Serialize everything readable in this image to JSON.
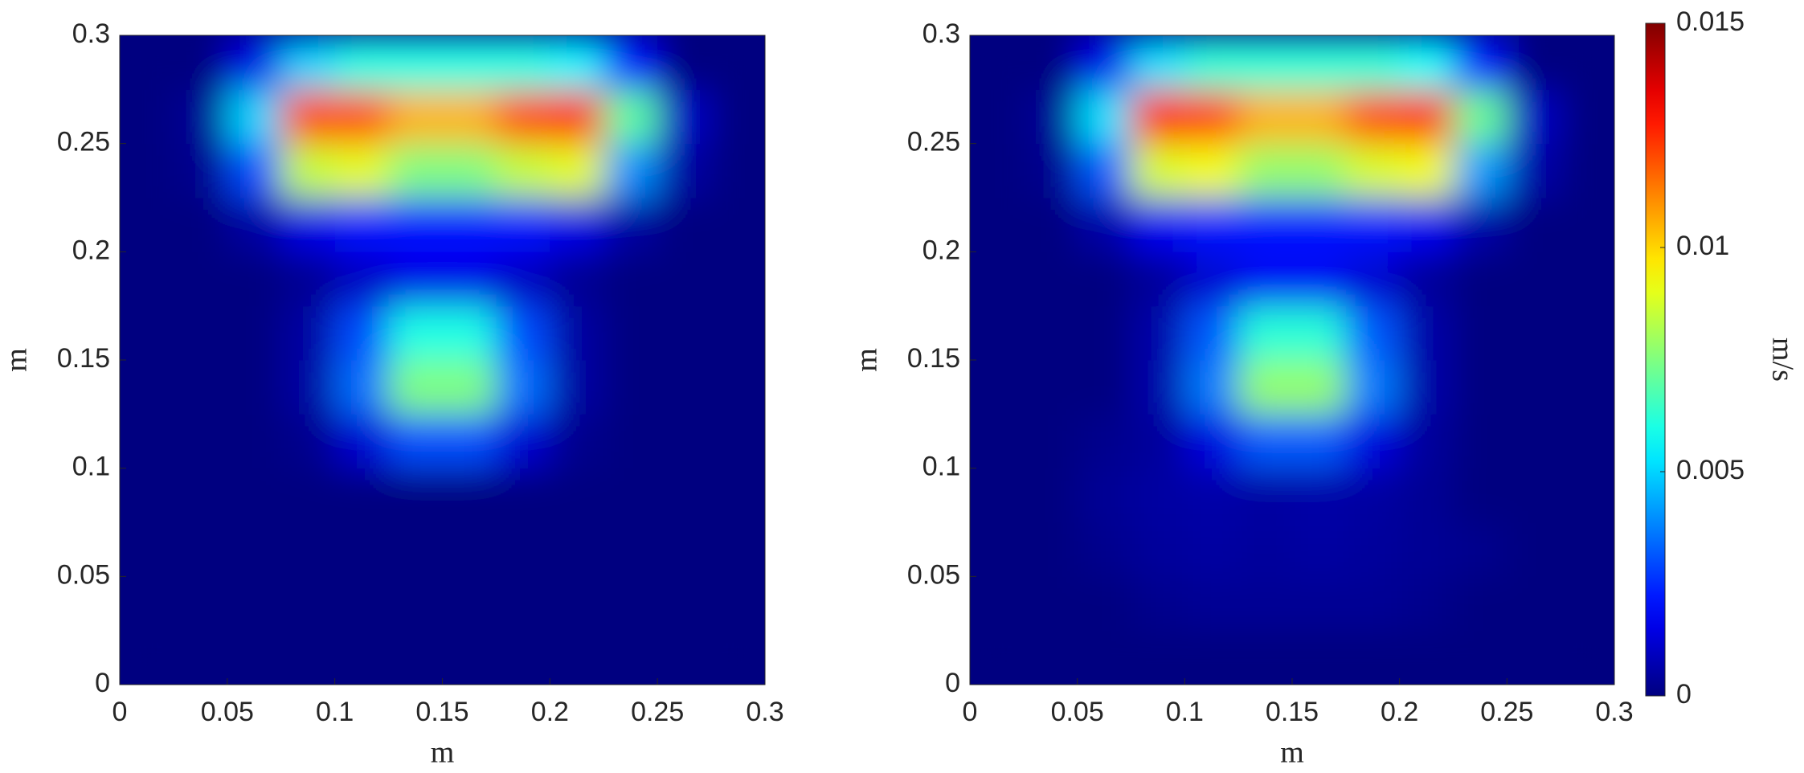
{
  "chart_data": [
    {
      "type": "heatmap",
      "colormap": "jet",
      "xlabel": "m",
      "ylabel": "m",
      "xlim": [
        0,
        0.3
      ],
      "ylim": [
        0,
        0.3
      ],
      "xticks": [
        0,
        0.05,
        0.1,
        0.15,
        0.2,
        0.25,
        0.3
      ],
      "yticks": [
        0,
        0.05,
        0.1,
        0.15,
        0.2,
        0.25,
        0.3
      ],
      "x": [
        0.0125,
        0.0375,
        0.0625,
        0.0875,
        0.1125,
        0.1375,
        0.1625,
        0.1875,
        0.2125,
        0.2375,
        0.2625,
        0.2875
      ],
      "y": [
        0.0125,
        0.0375,
        0.0625,
        0.0875,
        0.1125,
        0.1375,
        0.1625,
        0.1875,
        0.2125,
        0.2375,
        0.2625,
        0.2875
      ],
      "z": [
        [
          0,
          0,
          0,
          0,
          0,
          0,
          0,
          0,
          0,
          0,
          0,
          0
        ],
        [
          0,
          0,
          0,
          0,
          0,
          0,
          0,
          0,
          0,
          0,
          0,
          0
        ],
        [
          0,
          0,
          0,
          0,
          0,
          0,
          0,
          0,
          0,
          0,
          0,
          0
        ],
        [
          0,
          0,
          0,
          0,
          0,
          0,
          0,
          0,
          0,
          0,
          0,
          0
        ],
        [
          0,
          0,
          0,
          0.0002,
          0.0012,
          0.003,
          0.003,
          0.0012,
          0.0002,
          0,
          0,
          0
        ],
        [
          0,
          0,
          0,
          0.0005,
          0.0035,
          0.0075,
          0.0075,
          0.0035,
          0.0005,
          0,
          0,
          0
        ],
        [
          0,
          0,
          0,
          0.0005,
          0.003,
          0.006,
          0.006,
          0.003,
          0.0005,
          0,
          0,
          0
        ],
        [
          0,
          0,
          0,
          0.0003,
          0.001,
          0.0015,
          0.0015,
          0.001,
          0.0003,
          0,
          0,
          0
        ],
        [
          0,
          0,
          0.0005,
          0.0015,
          0.002,
          0.002,
          0.002,
          0.002,
          0.0015,
          0.0005,
          0,
          0
        ],
        [
          0,
          0.0002,
          0.003,
          0.0085,
          0.009,
          0.0075,
          0.0075,
          0.0085,
          0.009,
          0.004,
          0.0005,
          0
        ],
        [
          0,
          0.0003,
          0.005,
          0.012,
          0.012,
          0.0105,
          0.0105,
          0.012,
          0.0125,
          0.007,
          0.001,
          0
        ],
        [
          0,
          0,
          0.0015,
          0.005,
          0.006,
          0.006,
          0.006,
          0.006,
          0.0055,
          0.002,
          0,
          0
        ]
      ]
    },
    {
      "type": "heatmap",
      "colormap": "jet",
      "xlabel": "m",
      "ylabel": "m",
      "xlim": [
        0,
        0.3
      ],
      "ylim": [
        0,
        0.3
      ],
      "xticks": [
        0,
        0.05,
        0.1,
        0.15,
        0.2,
        0.25,
        0.3
      ],
      "yticks": [
        0,
        0.05,
        0.1,
        0.15,
        0.2,
        0.25,
        0.3
      ],
      "x": [
        0.0125,
        0.0375,
        0.0625,
        0.0875,
        0.1125,
        0.1375,
        0.1625,
        0.1875,
        0.2125,
        0.2375,
        0.2625,
        0.2875
      ],
      "y": [
        0.0125,
        0.0375,
        0.0625,
        0.0875,
        0.1125,
        0.1375,
        0.1625,
        0.1875,
        0.2125,
        0.2375,
        0.2625,
        0.2875
      ],
      "z": [
        [
          0,
          0,
          0,
          0,
          0,
          0,
          0,
          0,
          0,
          0,
          0,
          0
        ],
        [
          0,
          0,
          0,
          0.0002,
          0.0003,
          0.0003,
          0.0003,
          0.0003,
          0.0002,
          0,
          0,
          0
        ],
        [
          0,
          0,
          0.0002,
          0.0004,
          0.0005,
          0.0004,
          0.0005,
          0.0004,
          0.0003,
          0.0002,
          0,
          0
        ],
        [
          0,
          0,
          0.0003,
          0.0005,
          0.0006,
          0.0005,
          0.0006,
          0.0005,
          0.0003,
          0,
          0,
          0
        ],
        [
          0,
          0,
          0.0002,
          0.0004,
          0.0014,
          0.0032,
          0.0032,
          0.0014,
          0.0004,
          0,
          0,
          0
        ],
        [
          0,
          0,
          0,
          0.0006,
          0.0037,
          0.0078,
          0.0078,
          0.0037,
          0.0006,
          0,
          0,
          0
        ],
        [
          0,
          0,
          0,
          0.0006,
          0.0032,
          0.0062,
          0.0062,
          0.0032,
          0.0006,
          0,
          0,
          0
        ],
        [
          0,
          0,
          0,
          0.0004,
          0.0012,
          0.0017,
          0.0017,
          0.0012,
          0.0004,
          0,
          0,
          0
        ],
        [
          0,
          0,
          0.0006,
          0.0017,
          0.0022,
          0.0022,
          0.0022,
          0.0022,
          0.0017,
          0.0006,
          0,
          0
        ],
        [
          0,
          0.0002,
          0.0032,
          0.0088,
          0.0092,
          0.0078,
          0.0078,
          0.0088,
          0.0092,
          0.0042,
          0.0006,
          0
        ],
        [
          0,
          0.0003,
          0.0052,
          0.0125,
          0.0122,
          0.0105,
          0.0105,
          0.012,
          0.0125,
          0.0072,
          0.001,
          0
        ],
        [
          0,
          0,
          0.0016,
          0.0052,
          0.0062,
          0.0062,
          0.0062,
          0.0062,
          0.0057,
          0.0022,
          0,
          0
        ]
      ],
      "colorbar": {
        "label": "m/s",
        "lim": [
          0,
          0.015
        ],
        "ticks": [
          0,
          0.005,
          0.01,
          0.015
        ]
      }
    }
  ]
}
